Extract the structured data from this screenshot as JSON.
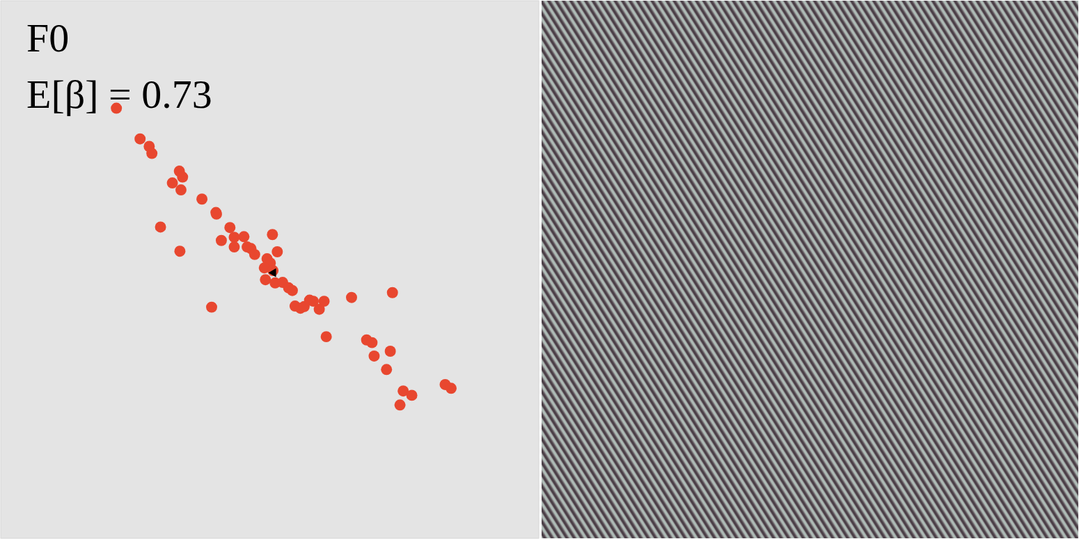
{
  "chart_data": {
    "type": "scatter",
    "title": "F0",
    "subtitle": "E[β] = 0.73",
    "xlim": [
      0,
      1
    ],
    "ylim": [
      0,
      1
    ],
    "tick_labels": false,
    "grid": false,
    "series": [
      {
        "color": "#e8472f",
        "marker": "circle",
        "x": [
          0.215,
          0.259,
          0.276,
          0.281,
          0.332,
          0.338,
          0.319,
          0.335,
          0.374,
          0.4,
          0.401,
          0.297,
          0.426,
          0.333,
          0.41,
          0.434,
          0.452,
          0.434,
          0.458,
          0.465,
          0.472,
          0.505,
          0.514,
          0.495,
          0.501,
          0.49,
          0.506,
          0.492,
          0.51,
          0.524,
          0.535,
          0.542,
          0.392,
          0.547,
          0.557,
          0.564,
          0.574,
          0.581,
          0.601,
          0.592,
          0.652,
          0.728,
          0.605,
          0.68,
          0.69,
          0.724,
          0.694,
          0.717,
          0.748,
          0.764,
          0.742,
          0.826,
          0.837
        ],
        "y": [
          0.8,
          0.743,
          0.729,
          0.716,
          0.683,
          0.672,
          0.661,
          0.648,
          0.631,
          0.606,
          0.603,
          0.579,
          0.578,
          0.534,
          0.554,
          0.56,
          0.561,
          0.542,
          0.542,
          0.539,
          0.528,
          0.565,
          0.533,
          0.52,
          0.512,
          0.503,
          0.498,
          0.481,
          0.475,
          0.476,
          0.466,
          0.461,
          0.43,
          0.432,
          0.428,
          0.431,
          0.443,
          0.441,
          0.441,
          0.426,
          0.448,
          0.457,
          0.375,
          0.369,
          0.364,
          0.348,
          0.339,
          0.314,
          0.274,
          0.266,
          0.248,
          0.286,
          0.279
        ]
      },
      {
        "color": "#000000",
        "marker": "triangle",
        "x": [
          0.507
        ],
        "y": [
          0.494
        ]
      }
    ]
  }
}
